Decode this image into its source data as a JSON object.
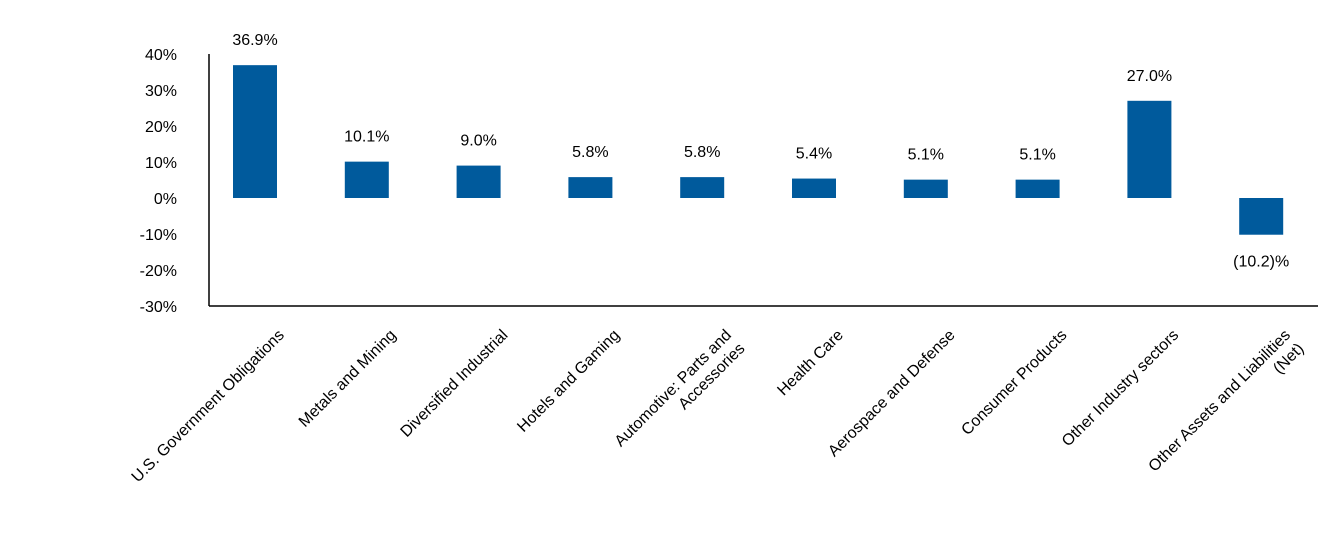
{
  "chart_data": {
    "type": "bar",
    "categories": [
      "U.S. Government Obligations",
      "Metals and Mining",
      "Diversified Industrial",
      "Hotels and Gaming",
      "Automotive: Parts and Accessories",
      "Health Care",
      "Aerospace and Defense",
      "Consumer Products",
      "Other Industry sectors",
      "Other Assets and Liabilities (Net)"
    ],
    "category_lines": [
      [
        "U.S. Government Obligations"
      ],
      [
        "Metals and Mining"
      ],
      [
        "Diversified Industrial"
      ],
      [
        "Hotels and Gaming"
      ],
      [
        "Automotive: Parts and",
        "Accessories"
      ],
      [
        "Health Care"
      ],
      [
        "Aerospace and Defense"
      ],
      [
        "Consumer Products"
      ],
      [
        "Other Industry sectors"
      ],
      [
        "Other Assets and Liabilities",
        "(Net)"
      ]
    ],
    "values": [
      36.9,
      10.1,
      9.0,
      5.8,
      5.8,
      5.4,
      5.1,
      5.1,
      27.0,
      -10.2
    ],
    "data_labels": [
      "36.9%",
      "10.1%",
      "9.0%",
      "5.8%",
      "5.8%",
      "5.4%",
      "5.1%",
      "5.1%",
      "27.0%",
      "(10.2)%"
    ],
    "ylim": [
      -30,
      40
    ],
    "y_ticks": [
      40,
      30,
      20,
      10,
      0,
      -10,
      -20,
      -30
    ],
    "y_tick_labels": [
      "40%",
      "30%",
      "20%",
      "10%",
      "0%",
      "-10%",
      "-20%",
      "-30%"
    ],
    "title": "",
    "xlabel": "",
    "ylabel": "",
    "grid": false,
    "legend": "none",
    "bar_color": "#005a9c"
  }
}
